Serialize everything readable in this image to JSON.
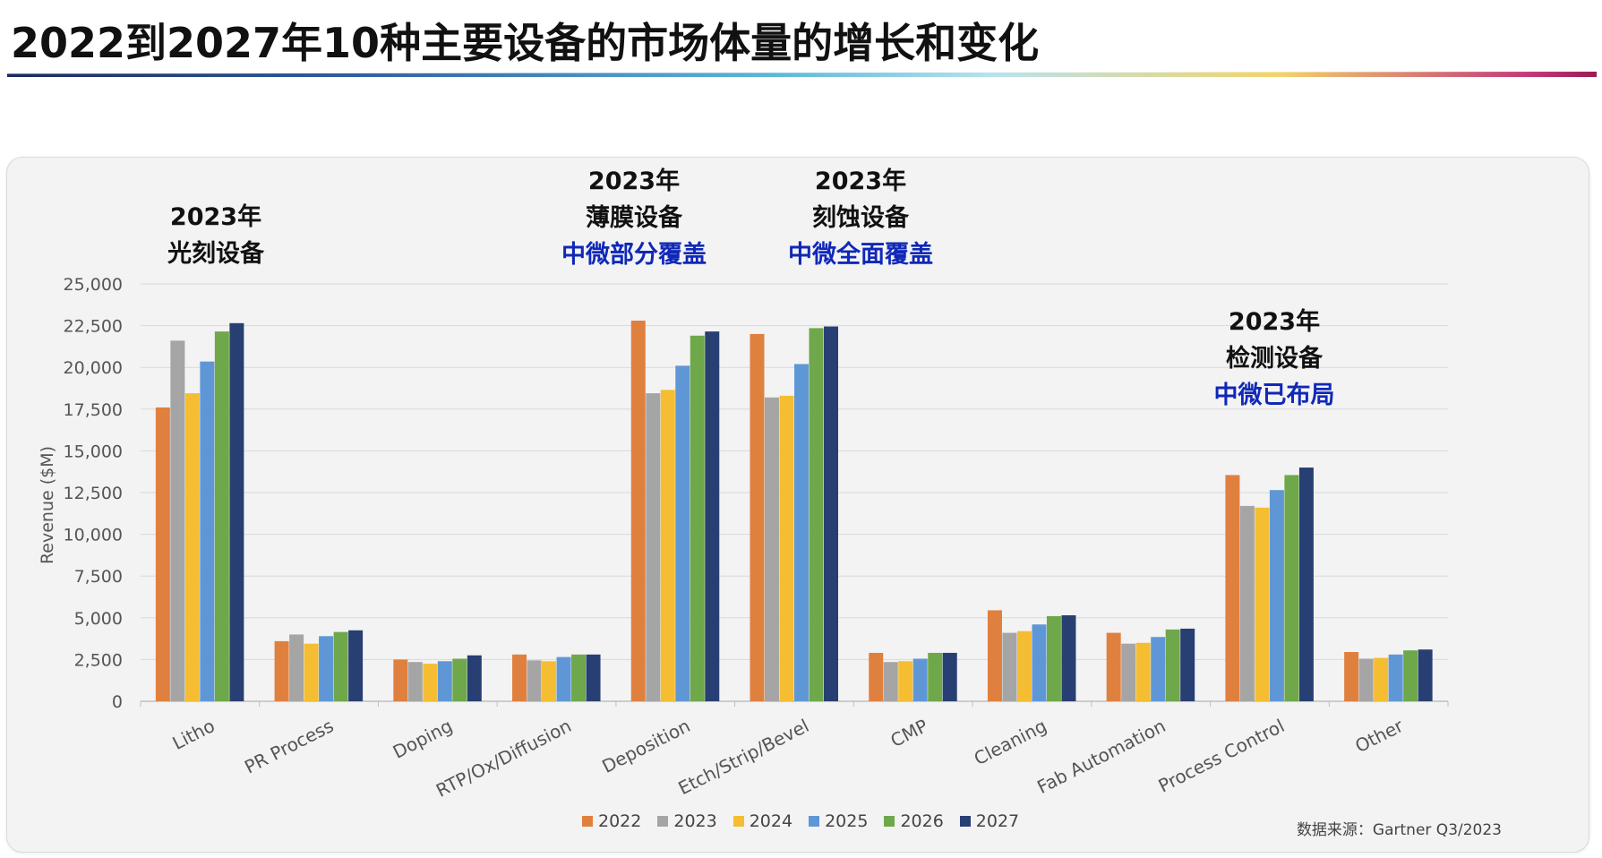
{
  "title": "2022到2027年10种主要设备的市场体量的增长和变化",
  "source": "数据来源：Gartner Q3/2023",
  "annotations": [
    {
      "line1": "2023年",
      "line2": "光刻设备",
      "line3": ""
    },
    {
      "line1": "2023年",
      "line2": "薄膜设备",
      "line3": "中微部分覆盖"
    },
    {
      "line1": "2023年",
      "line2": "刻蚀设备",
      "line3": "中微全面覆盖"
    },
    {
      "line1": "2023年",
      "line2": "检测设备",
      "line3": "中微已布局"
    }
  ],
  "colors": {
    "2022": "#e0803f",
    "2023": "#a5a5a5",
    "2024": "#f5bd32",
    "2025": "#5f97d6",
    "2026": "#6ea84a",
    "2027": "#283f73"
  },
  "chart_data": {
    "type": "bar",
    "title": "",
    "xlabel": "",
    "ylabel": "Revenue ($M)",
    "ylim": [
      0,
      25000
    ],
    "yticks": [
      0,
      2500,
      5000,
      7500,
      10000,
      12500,
      15000,
      17500,
      20000,
      22500,
      25000
    ],
    "ytick_labels": [
      "0",
      "2,500",
      "5,000",
      "7,500",
      "10,000",
      "12,500",
      "15,000",
      "17,500",
      "20,000",
      "22,500",
      "25,000"
    ],
    "grid": true,
    "legend": "bottom",
    "categories": [
      "Litho",
      "PR Process",
      "Doping",
      "RTP/Ox/Diffusion",
      "Deposition",
      "Etch/Strip/Bevel",
      "CMP",
      "Cleaning",
      "Fab Automation",
      "Process Control",
      "Other"
    ],
    "series": [
      {
        "name": "2022",
        "values": [
          17600,
          3600,
          2500,
          2800,
          22800,
          22000,
          2900,
          5450,
          4100,
          13550,
          2950
        ]
      },
      {
        "name": "2023",
        "values": [
          21600,
          4000,
          2350,
          2450,
          18450,
          18200,
          2350,
          4100,
          3450,
          11700,
          2550
        ]
      },
      {
        "name": "2024",
        "values": [
          18450,
          3450,
          2250,
          2400,
          18650,
          18300,
          2400,
          4200,
          3500,
          11600,
          2600
        ]
      },
      {
        "name": "2025",
        "values": [
          20350,
          3900,
          2400,
          2650,
          20100,
          20200,
          2550,
          4600,
          3850,
          12650,
          2800
        ]
      },
      {
        "name": "2026",
        "values": [
          22150,
          4150,
          2550,
          2800,
          21900,
          22350,
          2900,
          5100,
          4300,
          13550,
          3050
        ]
      },
      {
        "name": "2027",
        "values": [
          22650,
          4250,
          2750,
          2800,
          22150,
          22450,
          2900,
          5150,
          4350,
          14000,
          3100
        ]
      }
    ]
  }
}
